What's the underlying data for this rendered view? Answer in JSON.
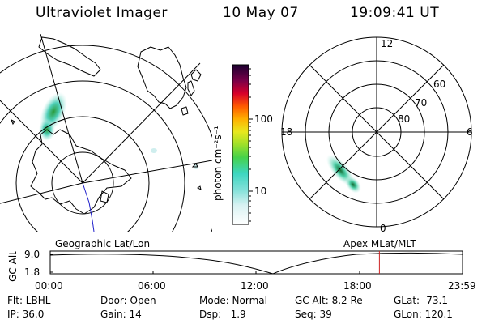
{
  "header": {
    "title": "Ultraviolet Imager",
    "date": "10 May 07",
    "time": "19:09:41 UT"
  },
  "colorbar": {
    "unit_label": "photon cm⁻²s⁻¹",
    "ticks": [
      "100",
      "10"
    ]
  },
  "right_plot": {
    "mlt_labels": {
      "top": "12",
      "left": "18",
      "right": "6",
      "bottom": "0"
    },
    "lat_labels": [
      "60",
      "70",
      "80"
    ]
  },
  "labels": {
    "left_plot": "Geographic Lat/Lon",
    "right_plot": "Apex MLat/MLT"
  },
  "altitude_plot": {
    "axis_label": "GC Alt",
    "y_ticks": [
      "9.0",
      "1.8"
    ],
    "x_ticks": [
      "00:00",
      "06:00",
      "12:00",
      "18:00",
      "23:59"
    ],
    "current_time_fraction": 0.7984,
    "marker_color": "#cc2222"
  },
  "footer": {
    "row1": {
      "filter": "Flt: LBHL",
      "door": "Door: Open",
      "mode": "Mode: Normal",
      "gc_alt": "GC Alt: 8.2 Re",
      "glat": "GLat: -73.1"
    },
    "row2": {
      "ip": "IP: 36.0",
      "gain": "Gain: 14",
      "dsp": "Dsp:   1.9",
      "seq": "Seq: 39",
      "glon": "GLon: 120.1"
    }
  }
}
